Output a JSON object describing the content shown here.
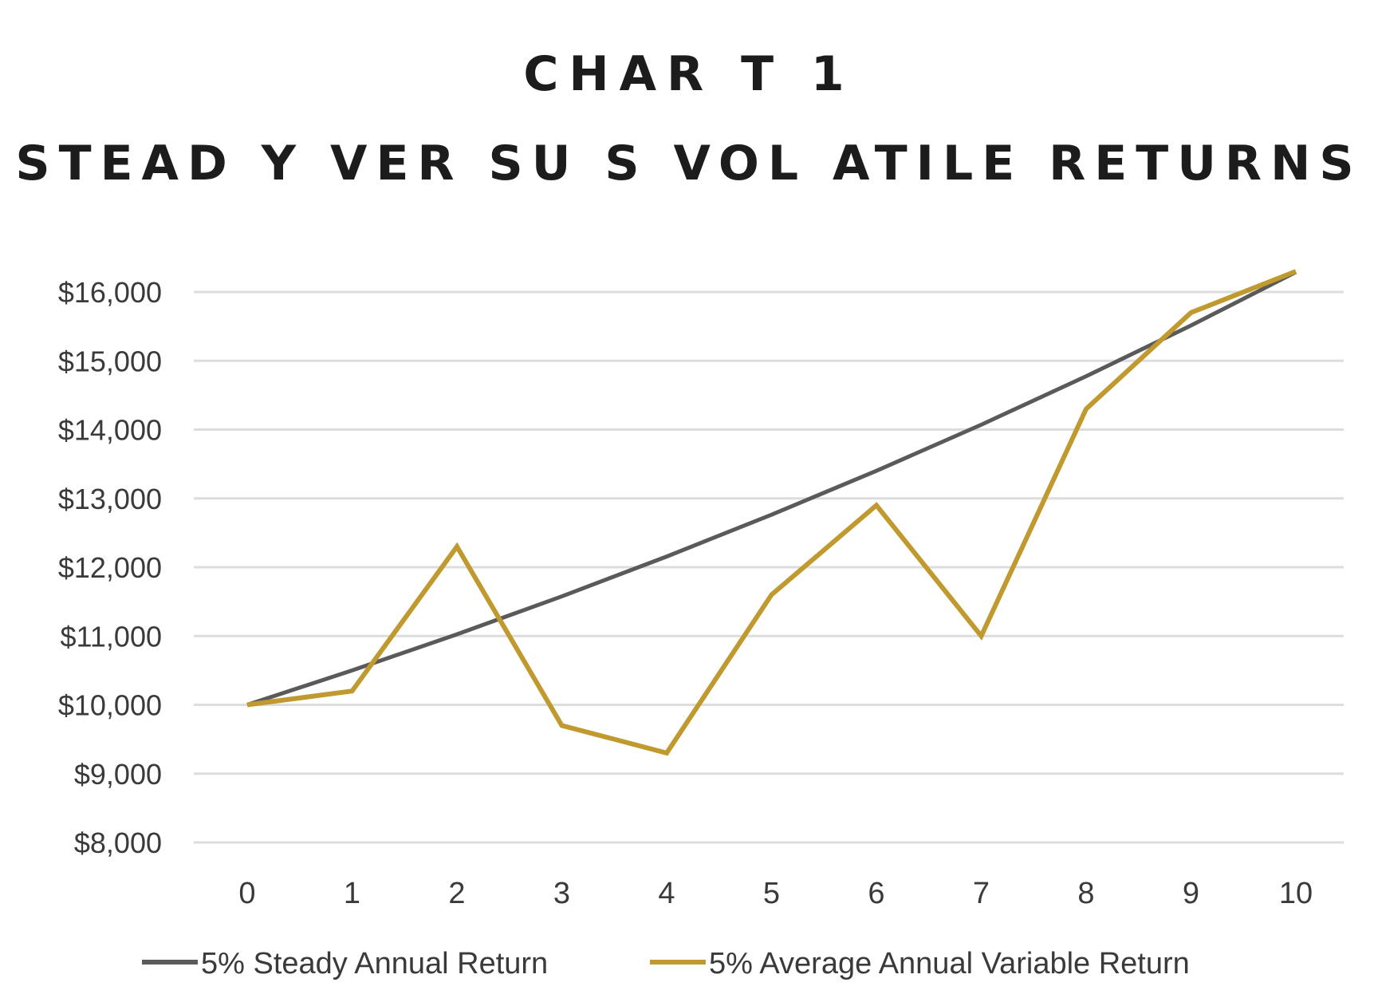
{
  "chart_data": {
    "type": "line",
    "title": "CHAR T 1",
    "subtitle": "STEAD Y VER SU S  VOL ATILE   RETURNS",
    "xlabel": "",
    "ylabel": "",
    "x": [
      0,
      1,
      2,
      3,
      4,
      5,
      6,
      7,
      8,
      9,
      10
    ],
    "x_tick_labels": [
      "0",
      "1",
      "2",
      "3",
      "4",
      "5",
      "6",
      "7",
      "8",
      "9",
      "10"
    ],
    "ylim": [
      8000,
      16000
    ],
    "y_ticks": [
      8000,
      9000,
      10000,
      11000,
      12000,
      13000,
      14000,
      15000,
      16000
    ],
    "y_tick_labels": [
      "$8,000",
      "$9,000",
      "$10,000",
      "$11,000",
      "$12,000",
      "$13,000",
      "$14,000",
      "$15,000",
      "$16,000"
    ],
    "grid": true,
    "legend_position": "bottom",
    "series": [
      {
        "name": "5% Steady Annual Return",
        "color": "#5a5a5a",
        "values": [
          10000,
          10500,
          11025,
          11576,
          12155,
          12763,
          13401,
          14071,
          14775,
          15513,
          16289
        ]
      },
      {
        "name": "5% Average Annual Variable Return",
        "color": "#c09a2e",
        "values": [
          10000,
          10200,
          12300,
          9700,
          9300,
          11600,
          12900,
          11000,
          14300,
          15700,
          16300
        ]
      }
    ]
  }
}
